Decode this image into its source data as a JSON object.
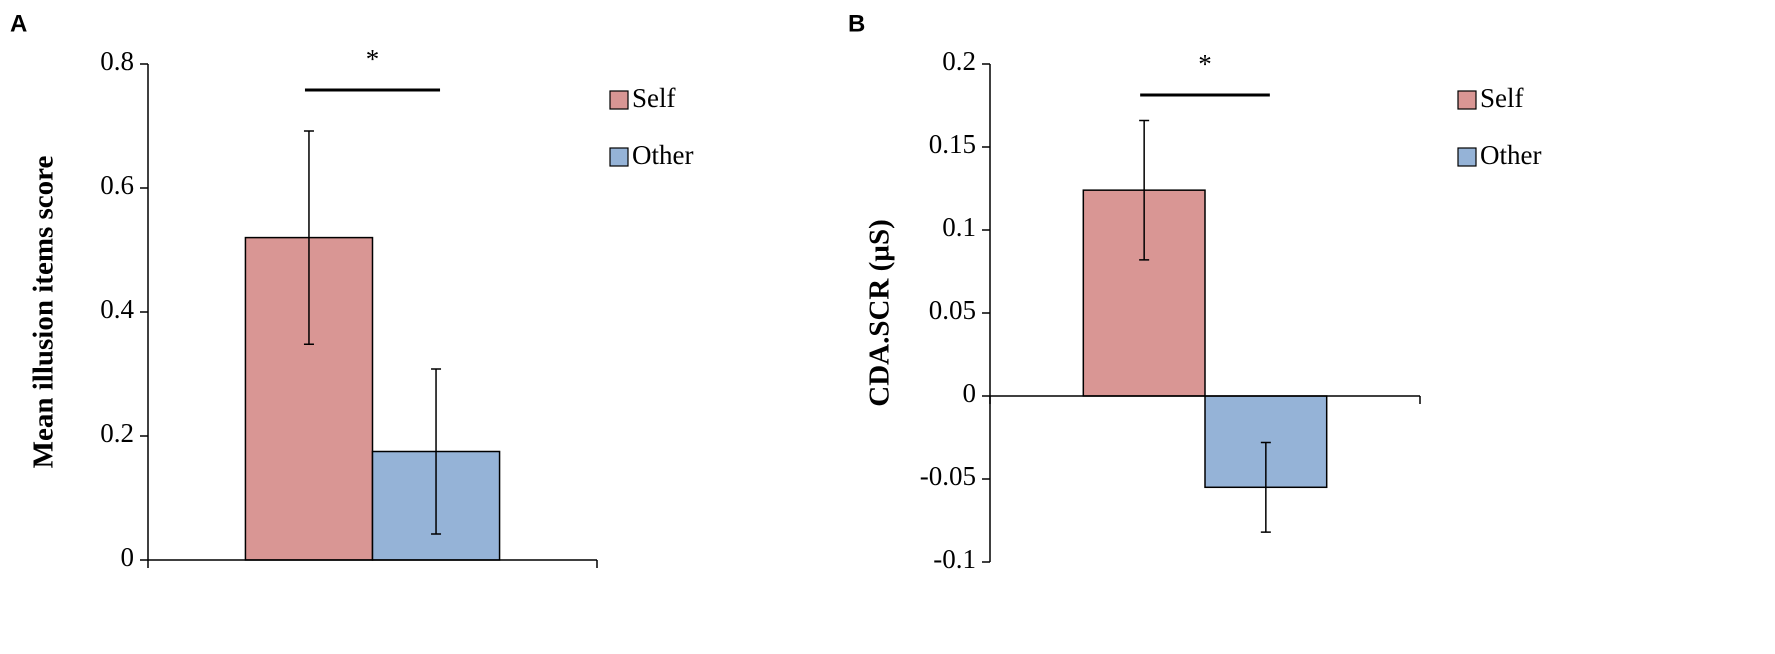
{
  "chart_data": [
    {
      "type": "bar",
      "panel_label": "A",
      "ylabel": "Mean illusion items score",
      "annotation": "*",
      "categories": [
        null
      ],
      "series": [
        {
          "name": "Self",
          "color": "#d99694",
          "values": [
            0.52
          ],
          "errors": [
            0.172
          ]
        },
        {
          "name": "Other",
          "color": "#95b3d7",
          "values": [
            0.175
          ],
          "errors": [
            0.133
          ]
        }
      ],
      "ylim": [
        0,
        0.8
      ],
      "yticks": [
        0,
        0.2,
        0.4,
        0.6,
        0.8
      ],
      "legend": "right"
    },
    {
      "type": "bar",
      "panel_label": "B",
      "ylabel": "CDA.SCR (µS)",
      "annotation": "*",
      "categories": [
        null
      ],
      "series": [
        {
          "name": "Self",
          "color": "#d99694",
          "values": [
            0.124
          ],
          "errors": [
            0.042
          ]
        },
        {
          "name": "Other",
          "color": "#95b3d7",
          "values": [
            -0.055
          ],
          "errors": [
            0.027
          ]
        }
      ],
      "ylim": [
        -0.1,
        0.2
      ],
      "yticks": [
        -0.1,
        -0.05,
        0,
        0.05,
        0.1,
        0.15,
        0.2
      ],
      "legend": "right"
    }
  ]
}
